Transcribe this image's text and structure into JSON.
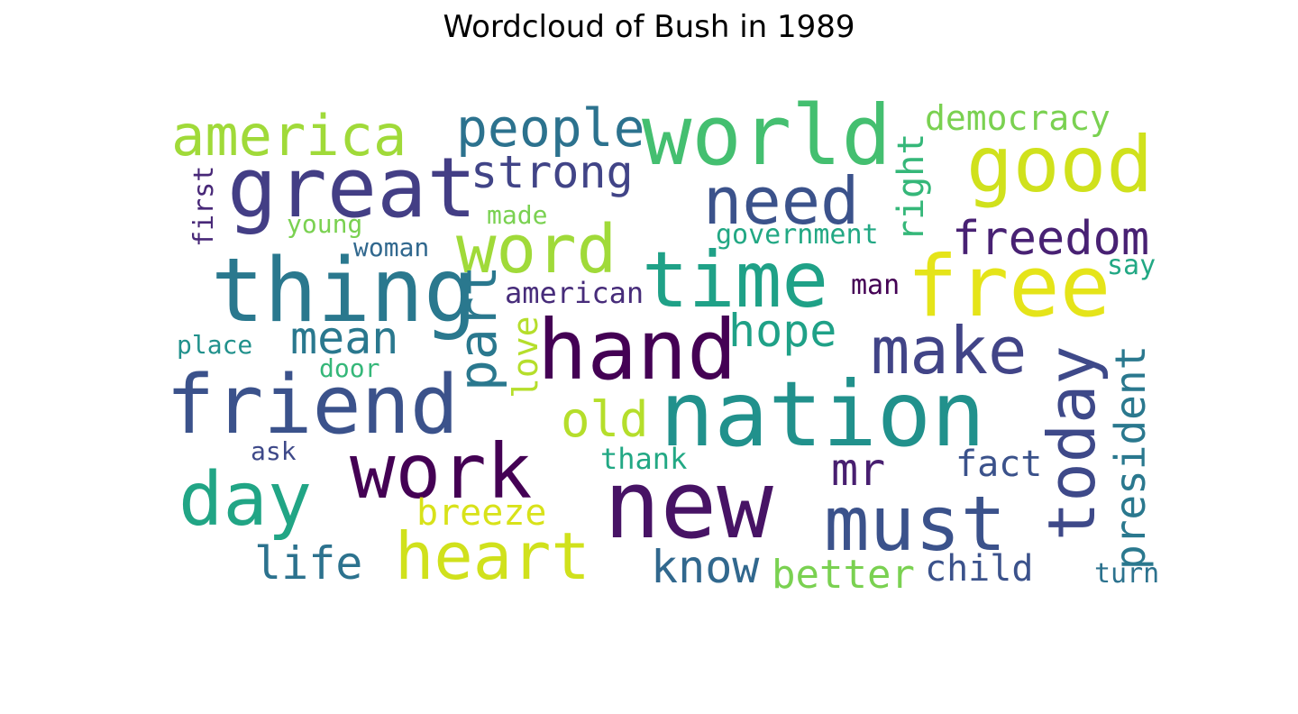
{
  "chart_data": {
    "type": "wordcloud",
    "title": "Wordcloud of Bush in 1989",
    "words": [
      {
        "text": "world",
        "color": "#44bf70"
      },
      {
        "text": "america",
        "color": "#a0da39"
      },
      {
        "text": "people",
        "color": "#2c728e"
      },
      {
        "text": "democracy",
        "color": "#7ad151"
      },
      {
        "text": "great",
        "color": "#433e85"
      },
      {
        "text": "strong",
        "color": "#414487"
      },
      {
        "text": "good",
        "color": "#d0e11c"
      },
      {
        "text": "need",
        "color": "#3b528b"
      },
      {
        "text": "right",
        "color": "#35b779"
      },
      {
        "text": "first",
        "color": "#482878"
      },
      {
        "text": "young",
        "color": "#7ad151"
      },
      {
        "text": "made",
        "color": "#7ad151"
      },
      {
        "text": "government",
        "color": "#22a884"
      },
      {
        "text": "word",
        "color": "#a0da39"
      },
      {
        "text": "woman",
        "color": "#31688e"
      },
      {
        "text": "freedom",
        "color": "#482173"
      },
      {
        "text": "time",
        "color": "#1fa187"
      },
      {
        "text": "thing",
        "color": "#2a788e"
      },
      {
        "text": "say",
        "color": "#22a884"
      },
      {
        "text": "free",
        "color": "#e5e419"
      },
      {
        "text": "american",
        "color": "#472c7a"
      },
      {
        "text": "man",
        "color": "#440154"
      },
      {
        "text": "part",
        "color": "#2a788e"
      },
      {
        "text": "mean",
        "color": "#2a788e"
      },
      {
        "text": "hope",
        "color": "#1fa187"
      },
      {
        "text": "hand",
        "color": "#440154"
      },
      {
        "text": "make",
        "color": "#414487"
      },
      {
        "text": "place",
        "color": "#21918c"
      },
      {
        "text": "love",
        "color": "#b5de2b"
      },
      {
        "text": "president",
        "color": "#2a788e"
      },
      {
        "text": "door",
        "color": "#35b779"
      },
      {
        "text": "friend",
        "color": "#3b528b"
      },
      {
        "text": "nation",
        "color": "#21918c"
      },
      {
        "text": "today",
        "color": "#3e4989"
      },
      {
        "text": "old",
        "color": "#b5de2b"
      },
      {
        "text": "ask",
        "color": "#3e4989"
      },
      {
        "text": "work",
        "color": "#440154"
      },
      {
        "text": "thank",
        "color": "#22a884"
      },
      {
        "text": "fact",
        "color": "#3b528b"
      },
      {
        "text": "mr",
        "color": "#481f70"
      },
      {
        "text": "day",
        "color": "#21a585"
      },
      {
        "text": "new",
        "color": "#471365"
      },
      {
        "text": "must",
        "color": "#3b528b"
      },
      {
        "text": "breeze",
        "color": "#d8e219"
      },
      {
        "text": "heart",
        "color": "#d0e11c"
      },
      {
        "text": "life",
        "color": "#2c728e"
      },
      {
        "text": "know",
        "color": "#31688e"
      },
      {
        "text": "better",
        "color": "#7ad151"
      },
      {
        "text": "child",
        "color": "#3b528b"
      },
      {
        "text": "turn",
        "color": "#2c728e"
      }
    ]
  }
}
